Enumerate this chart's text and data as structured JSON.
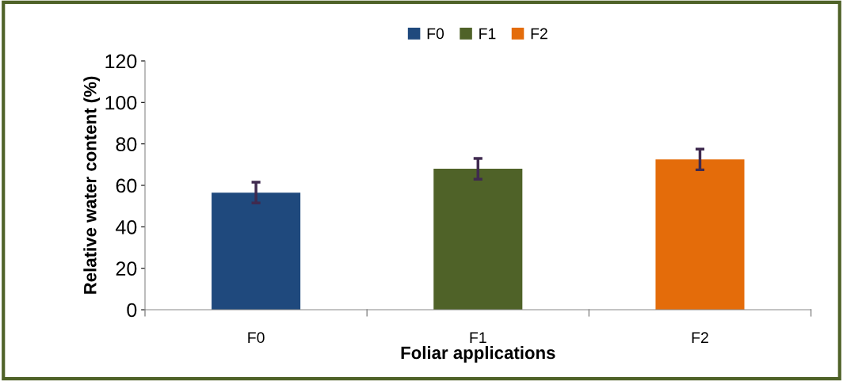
{
  "chart_data": {
    "type": "bar",
    "xlabel": "Foliar applications",
    "ylabel": "Relative water content (%)",
    "categories": [
      "F0",
      "F1",
      "F2"
    ],
    "series": [
      {
        "name": "F0",
        "color": "#1f497d",
        "values": [
          56.5,
          null,
          null
        ],
        "errors": [
          5,
          null,
          null
        ]
      },
      {
        "name": "F1",
        "color": "#4f6228",
        "values": [
          null,
          68,
          null
        ],
        "errors": [
          null,
          5,
          null
        ]
      },
      {
        "name": "F2",
        "color": "#e46c0a",
        "values": [
          null,
          null,
          72.5
        ],
        "errors": [
          null,
          null,
          5
        ]
      }
    ],
    "ylim": [
      0,
      120
    ],
    "yticks": [
      0,
      20,
      40,
      60,
      80,
      100,
      120
    ],
    "grid": false,
    "legend": "top"
  }
}
